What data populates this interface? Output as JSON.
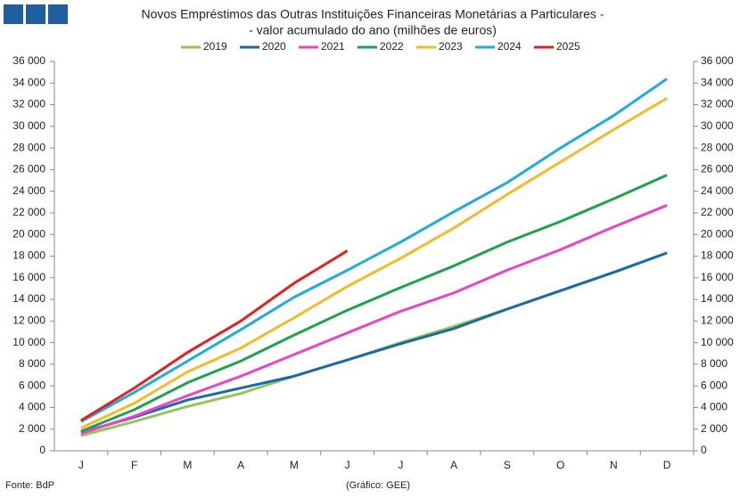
{
  "chart_data": {
    "type": "line",
    "title": "Novos Empréstimos das Outras Instituições Financeiras Monetárias a Particulares -",
    "subtitle": "- valor acumulado do ano (milhões de euros)",
    "source": "Fonte: BdP",
    "credit": "(Gráfico: GEE)",
    "categories": [
      "J",
      "F",
      "M",
      "A",
      "M",
      "J",
      "J",
      "A",
      "S",
      "O",
      "N",
      "D"
    ],
    "series": [
      {
        "name": "2019",
        "color": "#92c55a",
        "values": [
          1400,
          2700,
          4100,
          5300,
          6900,
          8400,
          10000,
          11500,
          13100,
          14800,
          16500,
          18300
        ]
      },
      {
        "name": "2020",
        "color": "#1b6aa5",
        "values": [
          1700,
          3100,
          4700,
          5800,
          6900,
          8400,
          9900,
          11300,
          13100,
          14800,
          16500,
          18300
        ]
      },
      {
        "name": "2021",
        "color": "#ea44c4",
        "values": [
          1600,
          3200,
          5100,
          6900,
          8900,
          10900,
          12900,
          14600,
          16700,
          18600,
          20700,
          22700
        ]
      },
      {
        "name": "2022",
        "color": "#1ea24c",
        "values": [
          1800,
          3800,
          6300,
          8300,
          10700,
          13000,
          15100,
          17100,
          19300,
          21200,
          23300,
          25500
        ]
      },
      {
        "name": "2023",
        "color": "#f3bb2a",
        "values": [
          2100,
          4400,
          7300,
          9500,
          12300,
          15200,
          17800,
          20600,
          23700,
          26700,
          29700,
          32600
        ]
      },
      {
        "name": "2024",
        "color": "#1eaae2",
        "values": [
          2700,
          5400,
          8300,
          11200,
          14200,
          16700,
          19300,
          22100,
          24800,
          28000,
          31000,
          34400
        ]
      },
      {
        "name": "2025",
        "color": "#e1201f",
        "values": [
          2800,
          5800,
          9100,
          12000,
          15500,
          18500,
          null,
          null,
          null,
          null,
          null,
          null
        ]
      }
    ],
    "ylim": [
      0,
      36000
    ],
    "yticks": [
      0,
      {
        "value": 2000,
        "label": "2 000"
      },
      {
        "value": 4000,
        "label": "4 000"
      },
      {
        "value": 6000,
        "label": "6 000"
      },
      {
        "value": 8000,
        "label": "8 000"
      },
      {
        "value": 10000,
        "label": "10 000"
      },
      {
        "value": 12000,
        "label": "12 000"
      },
      {
        "value": 14000,
        "label": "14 000"
      },
      {
        "value": 16000,
        "label": "16 000"
      },
      {
        "value": 18000,
        "label": "18 000"
      },
      {
        "value": 20000,
        "label": "20 000"
      },
      {
        "value": 22000,
        "label": "22 000"
      },
      {
        "value": 24000,
        "label": "24 000"
      },
      {
        "value": 26000,
        "label": "26 000"
      },
      {
        "value": 28000,
        "label": "28 000"
      },
      {
        "value": 30000,
        "label": "30 000"
      },
      {
        "value": 32000,
        "label": "32 000"
      },
      {
        "value": 34000,
        "label": "34 000"
      },
      {
        "value": 36000,
        "label": "36 000"
      }
    ],
    "y2lim": [
      0,
      36000
    ],
    "y2ticks": [
      0,
      {
        "value": 2000,
        "label": "2 000"
      },
      {
        "value": 4000,
        "label": "4 000"
      },
      {
        "value": 6000,
        "label": "6 000"
      },
      {
        "value": 8000,
        "label": "8 000"
      },
      {
        "value": 10000,
        "label": "10 000"
      },
      {
        "value": 12000,
        "label": "12 000"
      },
      {
        "value": 14000,
        "label": "14 000"
      },
      {
        "value": 16000,
        "label": "16 000"
      },
      {
        "value": 18000,
        "label": "18 000"
      },
      {
        "value": 20000,
        "label": "20 000"
      },
      {
        "value": 22000,
        "label": "22 000"
      },
      {
        "value": 24000,
        "label": "24 000"
      },
      {
        "value": 26000,
        "label": "26 000"
      },
      {
        "value": 28000,
        "label": "28 000"
      },
      {
        "value": 30000,
        "label": "30 000"
      },
      {
        "value": 32000,
        "label": "32 000"
      },
      {
        "value": 34000,
        "label": "34 000"
      },
      {
        "value": 36000,
        "label": "36 000"
      }
    ],
    "grid": false,
    "legend": "top"
  }
}
